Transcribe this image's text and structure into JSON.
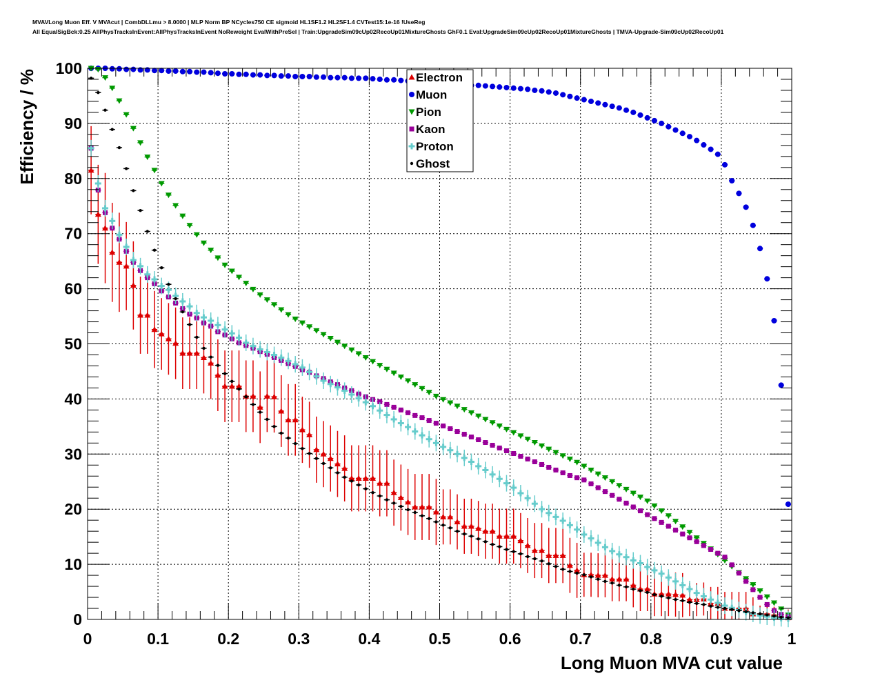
{
  "title_line1": "MVAVLong Muon Eff. V MVAcut | CombDLLmu > 8.0000 | MLP Norm BP NCycles750 CE sigmoid HL1SF1.2 HL2SF1.4 CVTest15:1e-16 !UseReg",
  "title_line2": "All EqualSigBck:0.25 AllPhysTracksInEvent:AllPhysTracksInEvent NoReweight EvalWithPreSel | Train:UpgradeSim09cUp02RecoUp01MixtureGhosts GhF0.1 Eval:UpgradeSim09cUp02RecoUp01MixtureGhosts | TMVA-Upgrade-Sim09cUp02RecoUp01",
  "chart_data": {
    "type": "scatter",
    "xlabel": "Long Muon MVA cut value",
    "ylabel": "Efficiency / %",
    "xlim": [
      0,
      1
    ],
    "ylim": [
      0,
      100
    ],
    "xticks": [
      "0",
      "0.1",
      "0.2",
      "0.3",
      "0.4",
      "0.5",
      "0.6",
      "0.7",
      "0.8",
      "0.9",
      "1"
    ],
    "yticks": [
      "0",
      "10",
      "20",
      "30",
      "40",
      "50",
      "60",
      "70",
      "80",
      "90",
      "100"
    ],
    "grid": true,
    "legend_placement": "top-center",
    "x_first": 0.005,
    "x_step": 0.01,
    "series": [
      {
        "name": "Electron",
        "color": "#dd0000",
        "marker": "triangle-up",
        "values": [
          81.5,
          73.5,
          71.0,
          66.6,
          64.8,
          64.1,
          60.6,
          55.2,
          55.2,
          52.6,
          51.8,
          50.9,
          50.1,
          48.3,
          48.3,
          48.3,
          47.5,
          46.5,
          44.3,
          42.3,
          42.3,
          42.3,
          40.5,
          40.5,
          38.5,
          40.5,
          40.4,
          37.8,
          36.2,
          36.2,
          34.4,
          33.5,
          30.8,
          30.0,
          29.2,
          28.2,
          27.4,
          25.6,
          25.6,
          25.6,
          25.6,
          24.7,
          24.7,
          23.0,
          22.1,
          21.3,
          20.4,
          20.4,
          20.4,
          19.5,
          18.6,
          18.6,
          17.7,
          16.9,
          16.9,
          16.5,
          16.0,
          16.0,
          15.1,
          15.1,
          15.1,
          14.3,
          13.4,
          12.5,
          12.5,
          11.6,
          11.6,
          11.6,
          9.8,
          8.9,
          8.1,
          8.1,
          8.0,
          8.0,
          7.3,
          7.3,
          7.3,
          6.2,
          5.5,
          5.5,
          4.6,
          4.6,
          4.6,
          4.5,
          4.4,
          3.6,
          3.6,
          3.7,
          2.9,
          2.9,
          2.0,
          2.0,
          2.0,
          2.0,
          1.0,
          1.0,
          1.0,
          0.8,
          0.5,
          0.3
        ],
        "errors": [
          8,
          9,
          10,
          9,
          9,
          8,
          8,
          7,
          7,
          7,
          6.5,
          6.5,
          6.5,
          6.5,
          6.5,
          6.5,
          6.5,
          6.5,
          6.5,
          6.5,
          6.5,
          6.5,
          6.5,
          6.5,
          6.5,
          6.5,
          6.5,
          6.5,
          6.5,
          6.5,
          6,
          6,
          6,
          6,
          6,
          6,
          6,
          6,
          6,
          6,
          6,
          6,
          6,
          6,
          6,
          6,
          6,
          6,
          6,
          6,
          5,
          5,
          5,
          5,
          5,
          5,
          5,
          5,
          5,
          5,
          5,
          5,
          5,
          5,
          5,
          5,
          5,
          5,
          5,
          5,
          4,
          4,
          4,
          4,
          4,
          4,
          4,
          4,
          4,
          4,
          4,
          4,
          4,
          4,
          4,
          3,
          3,
          3,
          3,
          3,
          3,
          3,
          3,
          3,
          3,
          1.5,
          1.5,
          1.5,
          1.5,
          1.5
        ]
      },
      {
        "name": "Muon",
        "color": "#0000dd",
        "marker": "circle",
        "values": [
          100,
          100,
          100,
          99.9,
          99.9,
          99.8,
          99.8,
          99.7,
          99.7,
          99.6,
          99.6,
          99.5,
          99.5,
          99.4,
          99.4,
          99.3,
          99.3,
          99.2,
          99.1,
          99.0,
          99.0,
          98.9,
          98.9,
          98.8,
          98.8,
          98.7,
          98.7,
          98.6,
          98.6,
          98.5,
          98.5,
          98.5,
          98.4,
          98.4,
          98.3,
          98.3,
          98.3,
          98.2,
          98.2,
          98.2,
          98.1,
          98.0,
          97.9,
          97.9,
          97.8,
          97.7,
          97.6,
          97.6,
          97.5,
          97.4,
          97.3,
          97.2,
          97.1,
          97.0,
          96.9,
          96.9,
          96.8,
          96.7,
          96.6,
          96.5,
          96.4,
          96.3,
          96.2,
          96.0,
          95.9,
          95.7,
          95.5,
          95.2,
          94.9,
          94.6,
          94.3,
          94.0,
          93.7,
          93.4,
          93.1,
          92.8,
          92.4,
          92.0,
          91.5,
          91.0,
          90.5,
          90.0,
          89.4,
          88.8,
          88.2,
          87.6,
          86.9,
          86.1,
          85.3,
          84.4,
          82.5,
          79.6,
          77.3,
          74.8,
          71.5,
          67.3,
          61.8,
          54.2,
          42.5,
          20.9
        ]
      },
      {
        "name": "Pion",
        "color": "#009900",
        "marker": "triangle-down",
        "values": [
          100,
          99.8,
          98.3,
          96.4,
          94.1,
          91.6,
          89.1,
          86.5,
          83.9,
          81.5,
          79.1,
          77.0,
          75.1,
          73.2,
          71.5,
          69.8,
          68.3,
          67.0,
          65.6,
          64.3,
          63.2,
          62.1,
          61.0,
          59.9,
          58.9,
          58.0,
          57.1,
          56.2,
          55.3,
          54.5,
          53.8,
          53.1,
          52.4,
          51.7,
          51.0,
          50.3,
          49.6,
          48.9,
          48.2,
          47.5,
          46.8,
          46.1,
          45.4,
          44.7,
          44.0,
          43.3,
          42.6,
          41.9,
          41.2,
          40.5,
          39.9,
          39.3,
          38.7,
          38.1,
          37.5,
          36.9,
          36.3,
          35.7,
          35.1,
          34.5,
          33.9,
          33.3,
          32.7,
          32.1,
          31.5,
          30.9,
          30.3,
          29.7,
          29.1,
          28.5,
          27.8,
          27.1,
          26.4,
          25.7,
          25.0,
          24.3,
          23.6,
          22.9,
          22.2,
          21.5,
          20.6,
          19.7,
          18.8,
          17.8,
          16.8,
          15.8,
          14.8,
          13.8,
          12.8,
          11.8,
          10.7,
          9.6,
          8.5,
          7.4,
          6.3,
          5.2,
          4.1,
          3.0,
          1.9,
          0.8
        ]
      },
      {
        "name": "Kaon",
        "color": "#990099",
        "marker": "square",
        "values": [
          85.5,
          77.9,
          73.8,
          71.0,
          69.0,
          66.8,
          64.8,
          63.3,
          62.0,
          60.9,
          59.6,
          58.5,
          57.4,
          56.4,
          55.4,
          54.7,
          53.8,
          53.2,
          52.2,
          51.6,
          50.9,
          50.2,
          49.7,
          49.2,
          48.6,
          48.1,
          47.5,
          47.0,
          46.4,
          45.9,
          45.3,
          44.8,
          44.2,
          43.7,
          43.1,
          42.6,
          42.0,
          41.5,
          40.9,
          40.4,
          39.9,
          39.5,
          39.0,
          38.5,
          38.0,
          37.5,
          37.0,
          36.6,
          36.1,
          35.6,
          35.1,
          34.6,
          34.1,
          33.6,
          33.1,
          32.6,
          32.1,
          31.6,
          31.1,
          30.6,
          30.1,
          29.6,
          29.1,
          28.6,
          28.1,
          27.6,
          27.1,
          26.6,
          26.1,
          25.7,
          25.3,
          24.6,
          23.9,
          23.2,
          22.5,
          21.8,
          21.1,
          20.4,
          19.7,
          19.0,
          18.3,
          17.6,
          16.9,
          16.2,
          15.5,
          14.8,
          14.1,
          13.4,
          12.7,
          12.0,
          11.3,
          9.9,
          8.4,
          6.9,
          5.4,
          4.0,
          2.7,
          1.6,
          0.9,
          0.5
        ]
      },
      {
        "name": "Proton",
        "color": "#66cccc",
        "marker": "cross",
        "values": [
          85.5,
          79.1,
          74.6,
          72.3,
          69.8,
          67.6,
          65.2,
          64.1,
          62.6,
          61.7,
          60.5,
          59.8,
          58.7,
          57.7,
          56.8,
          55.6,
          54.8,
          54.2,
          53.4,
          52.6,
          51.9,
          51.1,
          50.2,
          49.6,
          49.0,
          48.5,
          48.0,
          47.5,
          46.9,
          46.3,
          45.7,
          44.9,
          44.1,
          43.3,
          42.7,
          42.1,
          41.5,
          40.8,
          40.1,
          39.4,
          38.7,
          37.9,
          37.1,
          36.3,
          35.6,
          34.9,
          34.1,
          33.4,
          32.7,
          32.0,
          31.3,
          30.7,
          30.0,
          29.3,
          28.6,
          27.8,
          27.1,
          26.3,
          25.5,
          24.7,
          23.9,
          22.9,
          22.0,
          21.0,
          20.0,
          19.3,
          18.6,
          17.9,
          17.1,
          16.3,
          15.4,
          14.7,
          13.9,
          13.1,
          12.4,
          11.8,
          11.3,
          10.7,
          10.2,
          9.5,
          8.9,
          8.3,
          7.6,
          6.9,
          6.2,
          5.5,
          4.8,
          4.2,
          3.6,
          3.0,
          2.5,
          2.1,
          1.7,
          1.3,
          1.0,
          0.7,
          0.5,
          0.3,
          0.2,
          0.1
        ]
      },
      {
        "name": "Ghost",
        "color": "#000000",
        "marker": "dot",
        "values": [
          98.2,
          95.6,
          92.4,
          88.9,
          85.6,
          81.8,
          77.8,
          74.2,
          70.4,
          67.0,
          63.8,
          60.8,
          58.2,
          55.8,
          53.5,
          51.2,
          49.2,
          47.6,
          46.1,
          44.6,
          43.2,
          41.8,
          40.4,
          39.0,
          37.6,
          36.3,
          35.0,
          33.8,
          32.9,
          31.9,
          31.0,
          30.1,
          29.2,
          28.3,
          27.5,
          26.6,
          25.8,
          25.1,
          24.4,
          23.7,
          23.0,
          22.4,
          21.7,
          21.1,
          20.5,
          19.9,
          19.4,
          18.8,
          18.3,
          17.7,
          17.1,
          16.6,
          16.0,
          15.5,
          15.1,
          14.6,
          14.1,
          13.6,
          13.2,
          12.7,
          12.3,
          11.9,
          11.4,
          11.0,
          10.6,
          10.1,
          9.6,
          9.1,
          8.7,
          8.4,
          8.1,
          7.7,
          7.3,
          6.9,
          6.6,
          6.2,
          5.9,
          5.5,
          5.2,
          4.9,
          4.5,
          4.2,
          3.9,
          3.6,
          3.4,
          3.1,
          2.9,
          2.7,
          2.4,
          2.2,
          2.0,
          1.8,
          1.6,
          1.4,
          1.2,
          1.0,
          0.8,
          0.6,
          0.4,
          0.3
        ]
      }
    ]
  }
}
